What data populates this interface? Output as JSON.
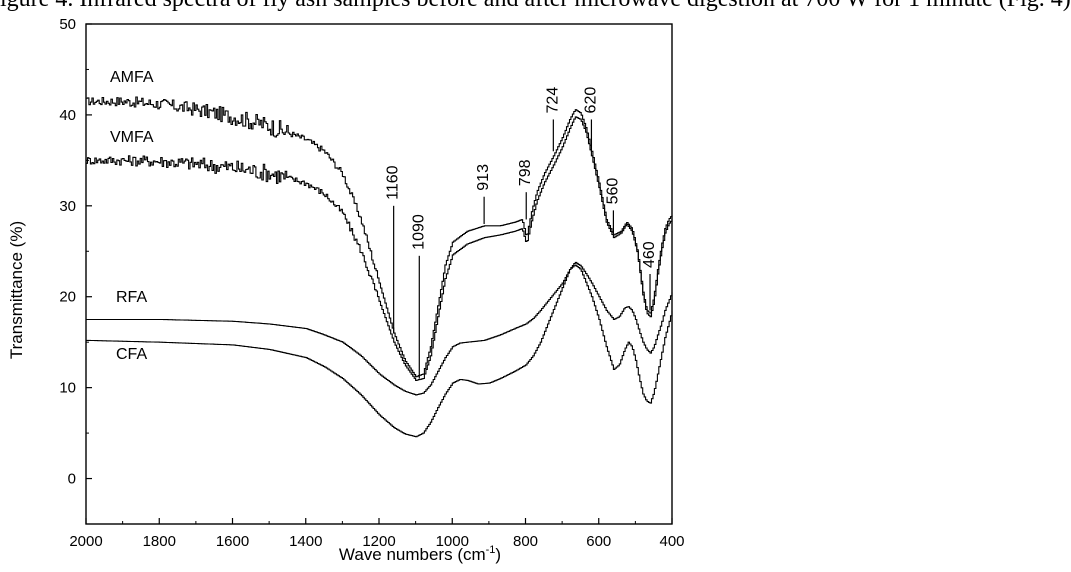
{
  "caption_fragment": "igure 4. Infrared spectra of fly ash samples before and after microwave digestion at 700 W for 1 minute (Fig. 4)",
  "chart_data": {
    "type": "line",
    "xlabel": "Wave numbers (cm",
    "xlabel_sup": "-1",
    "xlabel_suffix": ")",
    "ylabel": "Transmittance (%)",
    "xlim": [
      2000,
      400
    ],
    "ylim": [
      -5,
      50
    ],
    "xticks": [
      2000,
      1800,
      1600,
      1400,
      1200,
      1000,
      800,
      600,
      400
    ],
    "yticks": [
      0,
      10,
      20,
      30,
      40,
      50
    ],
    "grid": false,
    "series": [
      {
        "name": "AMFA",
        "noisy": true,
        "x": [
          2000,
          1900,
          1800,
          1700,
          1600,
          1500,
          1400,
          1350,
          1300,
          1250,
          1200,
          1160,
          1130,
          1100,
          1080,
          1060,
          1040,
          1020,
          1000,
          960,
          913,
          870,
          830,
          810,
          798,
          785,
          770,
          750,
          724,
          700,
          680,
          665,
          650,
          635,
          620,
          600,
          580,
          560,
          540,
          525,
          510,
          495,
          480,
          470,
          460,
          450,
          440,
          430,
          420,
          410,
          400
        ],
        "y": [
          41.5,
          41.5,
          41.2,
          40.6,
          39.8,
          38.8,
          37.3,
          36,
          33.5,
          28.5,
          21.5,
          16,
          13,
          11.2,
          11.5,
          14.5,
          19,
          23.5,
          26,
          27.2,
          27.8,
          27.8,
          28.2,
          28.5,
          26.5,
          29.2,
          31.5,
          33.5,
          35.5,
          37.5,
          39.5,
          40.6,
          40.2,
          38.5,
          36,
          32.5,
          28.5,
          26.8,
          27.2,
          28.2,
          27.5,
          25,
          20.5,
          18.5,
          18.2,
          20,
          23,
          25.5,
          27.5,
          28.5,
          29
        ]
      },
      {
        "name": "VMFA",
        "noisy": true,
        "x": [
          2000,
          1900,
          1800,
          1700,
          1600,
          1500,
          1400,
          1350,
          1300,
          1250,
          1200,
          1160,
          1130,
          1100,
          1080,
          1060,
          1040,
          1020,
          1000,
          960,
          913,
          870,
          830,
          810,
          798,
          785,
          770,
          750,
          724,
          700,
          680,
          665,
          650,
          635,
          620,
          600,
          580,
          560,
          540,
          525,
          510,
          495,
          480,
          470,
          460,
          450,
          440,
          430,
          420,
          410,
          400
        ],
        "y": [
          35,
          35,
          34.9,
          34.6,
          34.2,
          33.6,
          32.5,
          31.3,
          29.2,
          25,
          19.5,
          15,
          12.5,
          10.8,
          11,
          13.5,
          17.8,
          22,
          24.6,
          25.8,
          26.5,
          26.8,
          27.2,
          27.5,
          25.8,
          28.2,
          30.5,
          32.5,
          34.5,
          36.5,
          38.5,
          39.8,
          39.5,
          38,
          35.5,
          32,
          28.2,
          26.5,
          27,
          28,
          27.2,
          24.8,
          20.2,
          18.2,
          17.8,
          19.5,
          22.5,
          25,
          27,
          28,
          28.5
        ]
      },
      {
        "name": "RFA",
        "noisy": false,
        "x": [
          2000,
          1800,
          1600,
          1500,
          1400,
          1350,
          1300,
          1250,
          1200,
          1160,
          1130,
          1100,
          1080,
          1060,
          1040,
          1020,
          1000,
          980,
          960,
          913,
          870,
          830,
          800,
          780,
          760,
          740,
          720,
          700,
          680,
          665,
          650,
          635,
          620,
          600,
          580,
          560,
          545,
          530,
          520,
          510,
          500,
          490,
          480,
          470,
          460,
          450,
          440,
          430,
          420,
          410,
          400
        ],
        "y": [
          17.5,
          17.5,
          17.3,
          17,
          16.5,
          15.8,
          15,
          13.5,
          11.5,
          10.3,
          9.6,
          9.2,
          9.4,
          10.3,
          11.8,
          13.3,
          14.5,
          14.9,
          15,
          15.2,
          15.8,
          16.5,
          17,
          17.6,
          18.5,
          19.5,
          20.5,
          21.5,
          23,
          23.8,
          23.4,
          22.5,
          21.5,
          20,
          18.5,
          17.5,
          17.8,
          18.8,
          18.9,
          18.5,
          17.5,
          16.2,
          15,
          14.2,
          13.8,
          14.5,
          15.8,
          17,
          18.5,
          19.5,
          20.5
        ]
      },
      {
        "name": "CFA",
        "noisy": false,
        "x": [
          2000,
          1800,
          1600,
          1500,
          1400,
          1350,
          1300,
          1250,
          1200,
          1160,
          1130,
          1100,
          1080,
          1060,
          1040,
          1020,
          1000,
          980,
          960,
          930,
          900,
          870,
          830,
          800,
          780,
          760,
          740,
          720,
          700,
          680,
          665,
          650,
          635,
          620,
          600,
          580,
          560,
          545,
          530,
          520,
          510,
          500,
          490,
          480,
          470,
          460,
          450,
          440,
          430,
          420,
          410,
          400
        ],
        "y": [
          15.2,
          15,
          14.7,
          14.2,
          13.3,
          12.3,
          11,
          9.2,
          7,
          5.6,
          4.9,
          4.6,
          5,
          6.2,
          7.8,
          9.3,
          10.5,
          10.9,
          10.8,
          10.4,
          10.5,
          11,
          11.8,
          12.5,
          13.5,
          15,
          17,
          19,
          21,
          23,
          23.5,
          23,
          21.5,
          20,
          17.5,
          14.5,
          12,
          12.5,
          14.2,
          15,
          14.5,
          13,
          11,
          9.3,
          8.5,
          8.3,
          9.5,
          11.5,
          13.5,
          15.5,
          17,
          18.5
        ]
      }
    ],
    "annotations": [
      {
        "text": "1160",
        "x": 1160,
        "y0": 16,
        "y1": 30
      },
      {
        "text": "1090",
        "x": 1090,
        "y0": 11,
        "y1": 24.5
      },
      {
        "text": "913",
        "x": 913,
        "y0": 28,
        "y1": 31
      },
      {
        "text": "798",
        "x": 798,
        "y0": 28.5,
        "y1": 31.5
      },
      {
        "text": "724",
        "x": 724,
        "y0": 36,
        "y1": 39.5
      },
      {
        "text": "620",
        "x": 620,
        "y0": 36,
        "y1": 39.5
      },
      {
        "text": "560",
        "x": 560,
        "y0": 27,
        "y1": 29.5
      },
      {
        "text": "460",
        "x": 460,
        "y0": 18.5,
        "y1": 22.5
      }
    ]
  }
}
